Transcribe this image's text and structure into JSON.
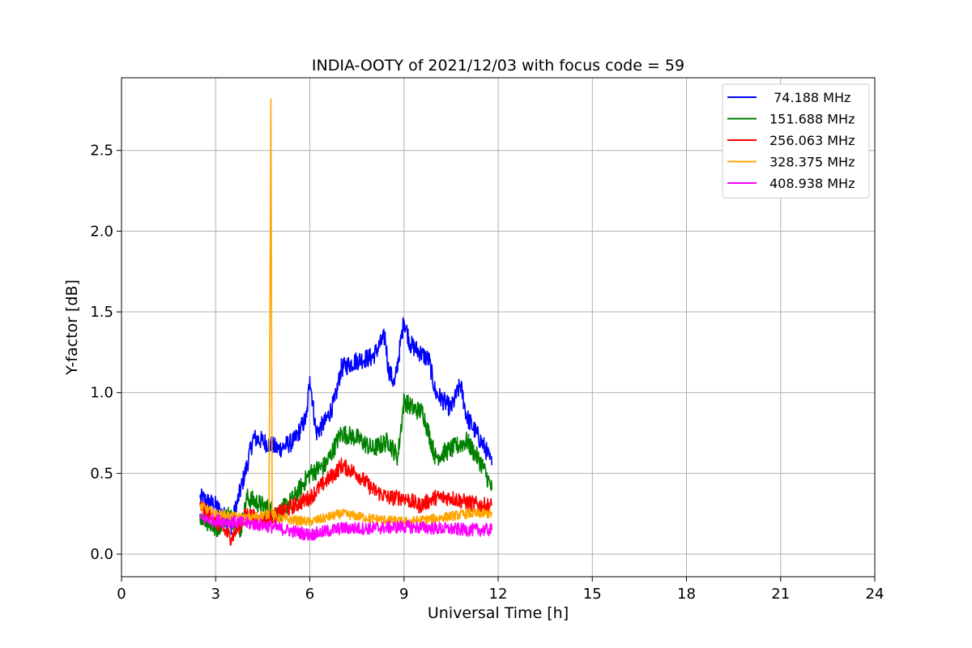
{
  "chart_data": {
    "type": "line",
    "title": "INDIA-OOTY of 2021/12/03 with focus code = 59",
    "xlabel": "Universal Time [h]",
    "ylabel": "Y-factor [dB]",
    "xlim": [
      0,
      24
    ],
    "ylim": [
      -0.14,
      2.95
    ],
    "xticks": [
      0,
      3,
      6,
      9,
      12,
      15,
      18,
      21,
      24
    ],
    "xtick_labels": [
      "0",
      "3",
      "6",
      "9",
      "12",
      "15",
      "18",
      "21",
      "24"
    ],
    "yticks": [
      0.0,
      0.5,
      1.0,
      1.5,
      2.0,
      2.5
    ],
    "ytick_labels": [
      "0.0",
      "0.5",
      "1.0",
      "1.5",
      "2.0",
      "2.5"
    ],
    "grid": true,
    "legend_position": "top-right",
    "series": [
      {
        "name": " 74.188 MHz",
        "color": "#0000ff",
        "noise": 0.06,
        "x": [
          2.5,
          3.0,
          3.5,
          4.0,
          4.2,
          4.5,
          5.0,
          5.5,
          5.9,
          6.0,
          6.2,
          6.5,
          6.8,
          7.0,
          7.5,
          8.0,
          8.4,
          8.5,
          8.7,
          9.0,
          9.2,
          9.5,
          9.8,
          10.0,
          10.5,
          10.8,
          11.0,
          11.3,
          11.6,
          11.8
        ],
        "y": [
          0.35,
          0.3,
          0.18,
          0.55,
          0.72,
          0.7,
          0.65,
          0.7,
          0.85,
          1.1,
          0.75,
          0.82,
          0.95,
          1.15,
          1.2,
          1.22,
          1.35,
          1.15,
          1.05,
          1.45,
          1.3,
          1.25,
          1.2,
          1.0,
          0.9,
          1.05,
          0.85,
          0.75,
          0.65,
          0.55
        ]
      },
      {
        "name": "151.688 MHz",
        "color": "#008000",
        "noise": 0.06,
        "x": [
          2.5,
          3.0,
          3.4,
          3.8,
          4.0,
          4.5,
          5.0,
          5.5,
          6.0,
          6.5,
          7.0,
          7.5,
          8.0,
          8.5,
          8.8,
          9.0,
          9.3,
          9.6,
          10.0,
          10.5,
          11.0,
          11.5,
          11.8
        ],
        "y": [
          0.25,
          0.15,
          0.25,
          0.15,
          0.35,
          0.3,
          0.25,
          0.35,
          0.5,
          0.55,
          0.75,
          0.72,
          0.65,
          0.7,
          0.6,
          0.95,
          0.9,
          0.88,
          0.6,
          0.65,
          0.7,
          0.55,
          0.4
        ]
      },
      {
        "name": "256.063 MHz",
        "color": "#ff0000",
        "noise": 0.05,
        "x": [
          2.5,
          3.0,
          3.5,
          4.0,
          4.5,
          5.0,
          5.5,
          6.0,
          6.5,
          6.8,
          7.0,
          7.5,
          8.0,
          8.5,
          9.0,
          9.5,
          10.0,
          10.5,
          11.0,
          11.5,
          11.8
        ],
        "y": [
          0.3,
          0.2,
          0.1,
          0.25,
          0.2,
          0.25,
          0.3,
          0.35,
          0.45,
          0.5,
          0.55,
          0.5,
          0.4,
          0.35,
          0.35,
          0.3,
          0.35,
          0.35,
          0.32,
          0.3,
          0.3
        ]
      },
      {
        "name": "328.375 MHz",
        "color": "#ffa500",
        "noise": 0.03,
        "x": [
          2.5,
          3.0,
          4.0,
          4.7,
          4.76,
          4.8,
          5.0,
          6.0,
          7.0,
          8.0,
          9.0,
          10.0,
          11.0,
          11.8
        ],
        "y": [
          0.3,
          0.25,
          0.22,
          0.25,
          2.82,
          0.25,
          0.22,
          0.2,
          0.25,
          0.22,
          0.2,
          0.22,
          0.25,
          0.25
        ]
      },
      {
        "name": "408.938 MHz",
        "color": "#ff00ff",
        "noise": 0.04,
        "x": [
          2.5,
          3.5,
          4.5,
          5.5,
          6.0,
          7.0,
          8.0,
          9.0,
          10.0,
          11.0,
          11.8
        ],
        "y": [
          0.22,
          0.2,
          0.18,
          0.14,
          0.12,
          0.16,
          0.16,
          0.17,
          0.16,
          0.15,
          0.15
        ]
      }
    ]
  }
}
